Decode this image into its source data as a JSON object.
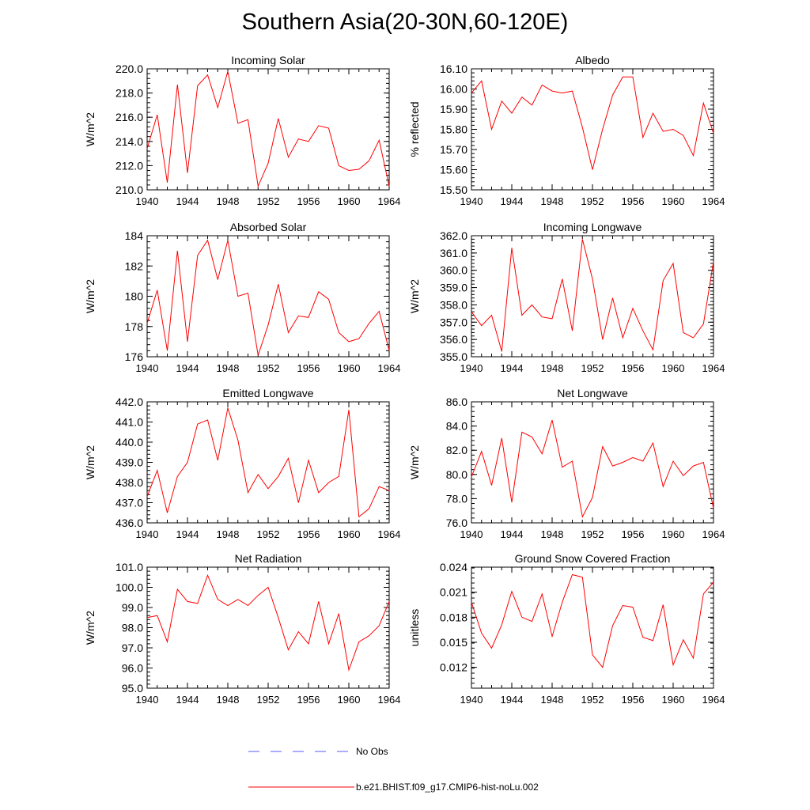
{
  "title": "Southern Asia(20-30N,60-120E)",
  "legend": {
    "obs_label": "No Obs",
    "obs_color": "#5a5aff",
    "model_label": "b.e21.BHIST.f09_g17.CMIP6-hist-noLu.002",
    "model_color": "#ff0000"
  },
  "chart_data": [
    {
      "type": "line",
      "title": "Incoming Solar",
      "ylabel": "W/m^2",
      "x": [
        1940,
        1941,
        1942,
        1943,
        1944,
        1945,
        1946,
        1947,
        1948,
        1949,
        1950,
        1951,
        1952,
        1953,
        1954,
        1955,
        1956,
        1957,
        1958,
        1959,
        1960,
        1961,
        1962,
        1963,
        1964
      ],
      "xticks": [
        1940,
        1944,
        1948,
        1952,
        1956,
        1960,
        1964
      ],
      "ylim": [
        210.0,
        220.0
      ],
      "yticks": [
        "210.0",
        "212.0",
        "214.0",
        "216.0",
        "218.0",
        "220.0"
      ],
      "series": [
        {
          "values": [
            213.4,
            216.2,
            210.6,
            218.7,
            211.4,
            218.6,
            219.5,
            216.8,
            219.8,
            215.5,
            215.8,
            210.3,
            212.2,
            215.9,
            212.7,
            214.2,
            214.0,
            215.3,
            215.1,
            212.0,
            211.6,
            211.7,
            212.4,
            214.1,
            210.3
          ]
        }
      ]
    },
    {
      "type": "line",
      "title": "Albedo",
      "ylabel": "% reflected",
      "x": [
        1940,
        1941,
        1942,
        1943,
        1944,
        1945,
        1946,
        1947,
        1948,
        1949,
        1950,
        1951,
        1952,
        1953,
        1954,
        1955,
        1956,
        1957,
        1958,
        1959,
        1960,
        1961,
        1962,
        1963,
        1964
      ],
      "xticks": [
        1940,
        1944,
        1948,
        1952,
        1956,
        1960,
        1964
      ],
      "ylim": [
        15.5,
        16.1
      ],
      "yticks": [
        "15.50",
        "15.60",
        "15.70",
        "15.80",
        "15.90",
        "16.00",
        "16.10"
      ],
      "series": [
        {
          "values": [
            15.98,
            16.04,
            15.8,
            15.94,
            15.88,
            15.96,
            15.92,
            16.02,
            15.99,
            15.98,
            15.99,
            15.81,
            15.6,
            15.8,
            15.97,
            16.06,
            16.06,
            15.76,
            15.88,
            15.79,
            15.8,
            15.77,
            15.67,
            15.93,
            15.78
          ]
        }
      ]
    },
    {
      "type": "line",
      "title": "Absorbed Solar",
      "ylabel": "W/m^2",
      "x": [
        1940,
        1941,
        1942,
        1943,
        1944,
        1945,
        1946,
        1947,
        1948,
        1949,
        1950,
        1951,
        1952,
        1953,
        1954,
        1955,
        1956,
        1957,
        1958,
        1959,
        1960,
        1961,
        1962,
        1963,
        1964
      ],
      "xticks": [
        1940,
        1944,
        1948,
        1952,
        1956,
        1960,
        1964
      ],
      "ylim": [
        176,
        184
      ],
      "yticks": [
        "176",
        "178",
        "180",
        "182",
        "184"
      ],
      "series": [
        {
          "values": [
            178.2,
            180.4,
            176.4,
            183.0,
            177.0,
            182.7,
            183.7,
            181.1,
            183.7,
            180.0,
            180.2,
            176.1,
            178.1,
            180.8,
            177.6,
            178.7,
            178.6,
            180.3,
            179.8,
            177.6,
            177.0,
            177.2,
            178.2,
            179.0,
            176.4
          ]
        }
      ]
    },
    {
      "type": "line",
      "title": "Incoming Longwave",
      "ylabel": "W/m^2",
      "x": [
        1940,
        1941,
        1942,
        1943,
        1944,
        1945,
        1946,
        1947,
        1948,
        1949,
        1950,
        1951,
        1952,
        1953,
        1954,
        1955,
        1956,
        1957,
        1958,
        1959,
        1960,
        1961,
        1962,
        1963,
        1964
      ],
      "xticks": [
        1940,
        1944,
        1948,
        1952,
        1956,
        1960,
        1964
      ],
      "ylim": [
        355.0,
        362.0
      ],
      "yticks": [
        "355.0",
        "356.0",
        "357.0",
        "358.0",
        "359.0",
        "360.0",
        "361.0",
        "362.0"
      ],
      "series": [
        {
          "values": [
            357.6,
            356.8,
            357.4,
            355.3,
            361.3,
            357.4,
            358.0,
            357.3,
            357.2,
            359.5,
            356.5,
            361.8,
            359.5,
            356.0,
            358.4,
            356.1,
            357.8,
            356.5,
            355.4,
            359.4,
            360.4,
            356.4,
            356.1,
            356.9,
            360.5
          ]
        }
      ]
    },
    {
      "type": "line",
      "title": "Emitted Longwave",
      "ylabel": "W/m^2",
      "x": [
        1940,
        1941,
        1942,
        1943,
        1944,
        1945,
        1946,
        1947,
        1948,
        1949,
        1950,
        1951,
        1952,
        1953,
        1954,
        1955,
        1956,
        1957,
        1958,
        1959,
        1960,
        1961,
        1962,
        1963,
        1964
      ],
      "xticks": [
        1940,
        1944,
        1948,
        1952,
        1956,
        1960,
        1964
      ],
      "ylim": [
        436.0,
        442.0
      ],
      "yticks": [
        "436.0",
        "437.0",
        "438.0",
        "439.0",
        "440.0",
        "441.0",
        "442.0"
      ],
      "series": [
        {
          "values": [
            437.3,
            438.6,
            436.5,
            438.3,
            439.0,
            440.9,
            441.1,
            439.1,
            441.7,
            440.1,
            437.5,
            438.4,
            437.7,
            438.3,
            439.2,
            437.0,
            439.1,
            437.5,
            438.0,
            438.3,
            441.6,
            436.3,
            436.7,
            437.8,
            437.6
          ]
        }
      ]
    },
    {
      "type": "line",
      "title": "Net Longwave",
      "ylabel": "W/m^2",
      "x": [
        1940,
        1941,
        1942,
        1943,
        1944,
        1945,
        1946,
        1947,
        1948,
        1949,
        1950,
        1951,
        1952,
        1953,
        1954,
        1955,
        1956,
        1957,
        1958,
        1959,
        1960,
        1961,
        1962,
        1963,
        1964
      ],
      "xticks": [
        1940,
        1944,
        1948,
        1952,
        1956,
        1960,
        1964
      ],
      "ylim": [
        76.0,
        86.0
      ],
      "yticks": [
        "76.0",
        "78.0",
        "80.0",
        "82.0",
        "84.0",
        "86.0"
      ],
      "series": [
        {
          "values": [
            79.8,
            81.9,
            79.1,
            83.0,
            77.7,
            83.5,
            83.1,
            81.7,
            84.5,
            80.6,
            81.1,
            76.5,
            78.1,
            82.3,
            80.7,
            81.0,
            81.4,
            81.1,
            82.6,
            79.0,
            81.1,
            79.9,
            80.7,
            81.0,
            77.2
          ]
        }
      ]
    },
    {
      "type": "line",
      "title": "Net Radiation",
      "ylabel": "W/m^2",
      "x": [
        1940,
        1941,
        1942,
        1943,
        1944,
        1945,
        1946,
        1947,
        1948,
        1949,
        1950,
        1951,
        1952,
        1953,
        1954,
        1955,
        1956,
        1957,
        1958,
        1959,
        1960,
        1961,
        1962,
        1963,
        1964
      ],
      "xticks": [
        1940,
        1944,
        1948,
        1952,
        1956,
        1960,
        1964
      ],
      "ylim": [
        95.0,
        101.0
      ],
      "yticks": [
        "95.0",
        "96.0",
        "97.0",
        "98.0",
        "99.0",
        "100.0",
        "101.0"
      ],
      "series": [
        {
          "values": [
            98.5,
            98.6,
            97.3,
            99.9,
            99.3,
            99.2,
            100.6,
            99.4,
            99.1,
            99.4,
            99.1,
            99.6,
            100.0,
            98.5,
            96.9,
            97.8,
            97.2,
            99.3,
            97.2,
            98.7,
            95.9,
            97.3,
            97.6,
            98.1,
            99.3
          ]
        }
      ]
    },
    {
      "type": "line",
      "title": "Ground Snow Covered Fraction",
      "ylabel": "unitless",
      "x": [
        1940,
        1941,
        1942,
        1943,
        1944,
        1945,
        1946,
        1947,
        1948,
        1949,
        1950,
        1951,
        1952,
        1953,
        1954,
        1955,
        1956,
        1957,
        1958,
        1959,
        1960,
        1961,
        1962,
        1963,
        1964
      ],
      "xticks": [
        1940,
        1944,
        1948,
        1952,
        1956,
        1960,
        1964
      ],
      "ylim": [
        0.0095,
        0.024
      ],
      "yticks": [
        "0.012",
        "0.015",
        "0.018",
        "0.021",
        "0.024"
      ],
      "series": [
        {
          "values": [
            0.0198,
            0.0161,
            0.0143,
            0.0171,
            0.0211,
            0.018,
            0.0175,
            0.0208,
            0.0157,
            0.0198,
            0.0231,
            0.0228,
            0.0135,
            0.012,
            0.017,
            0.0194,
            0.0192,
            0.0156,
            0.0152,
            0.0195,
            0.0123,
            0.0153,
            0.0131,
            0.0208,
            0.0222
          ]
        }
      ]
    }
  ]
}
